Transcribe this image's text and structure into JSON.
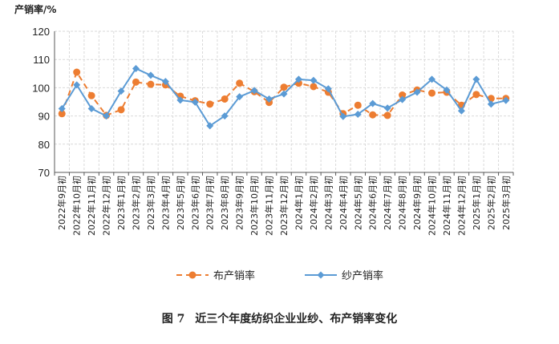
{
  "chart_data": {
    "type": "line",
    "ylabel": "产销率/%",
    "ylim": [
      70,
      120
    ],
    "yticks": [
      70,
      80,
      90,
      100,
      110,
      120
    ],
    "grid": true,
    "legend_position": "bottom-center",
    "categories": [
      "2022年9月初",
      "2022年10月初",
      "2022年11月初",
      "2022年12月初",
      "2023年1月初",
      "2023年2月初",
      "2023年3月初",
      "2023年4月初",
      "2023年5月初",
      "2023年6月初",
      "2023年7月初",
      "2023年8月初",
      "2023年9月初",
      "2023年10月初",
      "2023年11月初",
      "2023年12月初",
      "2024年1月初",
      "2024年2月初",
      "2024年3月初",
      "2024年4月初",
      "2024年5月初",
      "2024年6月初",
      "2024年7月初",
      "2024年8月初",
      "2024年9月初",
      "2024年10月初",
      "2024年11月初",
      "2024年12月初",
      "2025年1月初",
      "2025年2月初",
      "2025年3月初"
    ],
    "series": [
      {
        "name": "布产销率",
        "color": "#ed7d31",
        "style": "dashed-circle",
        "values": [
          90.8,
          105.5,
          97.2,
          90.2,
          92.2,
          102.0,
          101.2,
          101.0,
          97.0,
          95.4,
          94.2,
          96.0,
          101.6,
          98.6,
          94.8,
          100.2,
          101.6,
          100.4,
          98.4,
          90.8,
          93.8,
          90.4,
          90.2,
          97.4,
          99.2,
          98.1,
          98.4,
          93.8,
          97.6,
          96.2,
          96.2
        ]
      },
      {
        "name": "纱产销率",
        "color": "#5b9bd5",
        "style": "solid-diamond",
        "values": [
          92.6,
          101.0,
          92.6,
          90.0,
          98.8,
          106.8,
          104.4,
          102.2,
          95.6,
          94.9,
          86.5,
          90.0,
          96.8,
          99.0,
          96.0,
          97.8,
          103.0,
          102.6,
          99.6,
          89.8,
          90.6,
          94.4,
          92.8,
          95.8,
          98.4,
          103.0,
          99.2,
          91.8,
          103.0,
          94.2,
          95.5
        ]
      }
    ]
  },
  "caption": {
    "label": "图 7",
    "text": "近三个年度纺织企业业纱、布产销率变化"
  }
}
